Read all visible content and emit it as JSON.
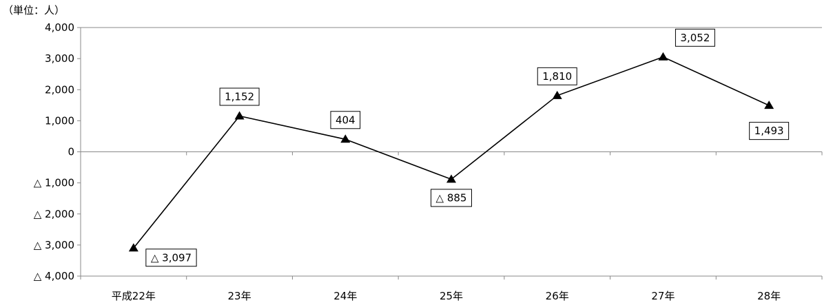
{
  "chart_data": {
    "type": "line",
    "unit_label": "（単位：人）",
    "categories": [
      "平成22年",
      "23年",
      "24年",
      "25年",
      "26年",
      "27年",
      "28年"
    ],
    "values": [
      -3097,
      1152,
      404,
      -885,
      1810,
      3052,
      1493
    ],
    "data_labels": [
      "△ 3,097",
      "1,152",
      "404",
      "△ 885",
      "1,810",
      "3,052",
      "1,493"
    ],
    "ylim": [
      -4000,
      4000
    ],
    "yticks": [
      4000,
      3000,
      2000,
      1000,
      0,
      -1000,
      -2000,
      -3000,
      -4000
    ],
    "ytick_labels": [
      "4,000",
      "3,000",
      "2,000",
      "1,000",
      "0",
      "△ 1,000",
      "△ 2,000",
      "△ 3,000",
      "△ 4,000"
    ],
    "grid": false,
    "marker": "triangle",
    "line_color": "#000000"
  }
}
